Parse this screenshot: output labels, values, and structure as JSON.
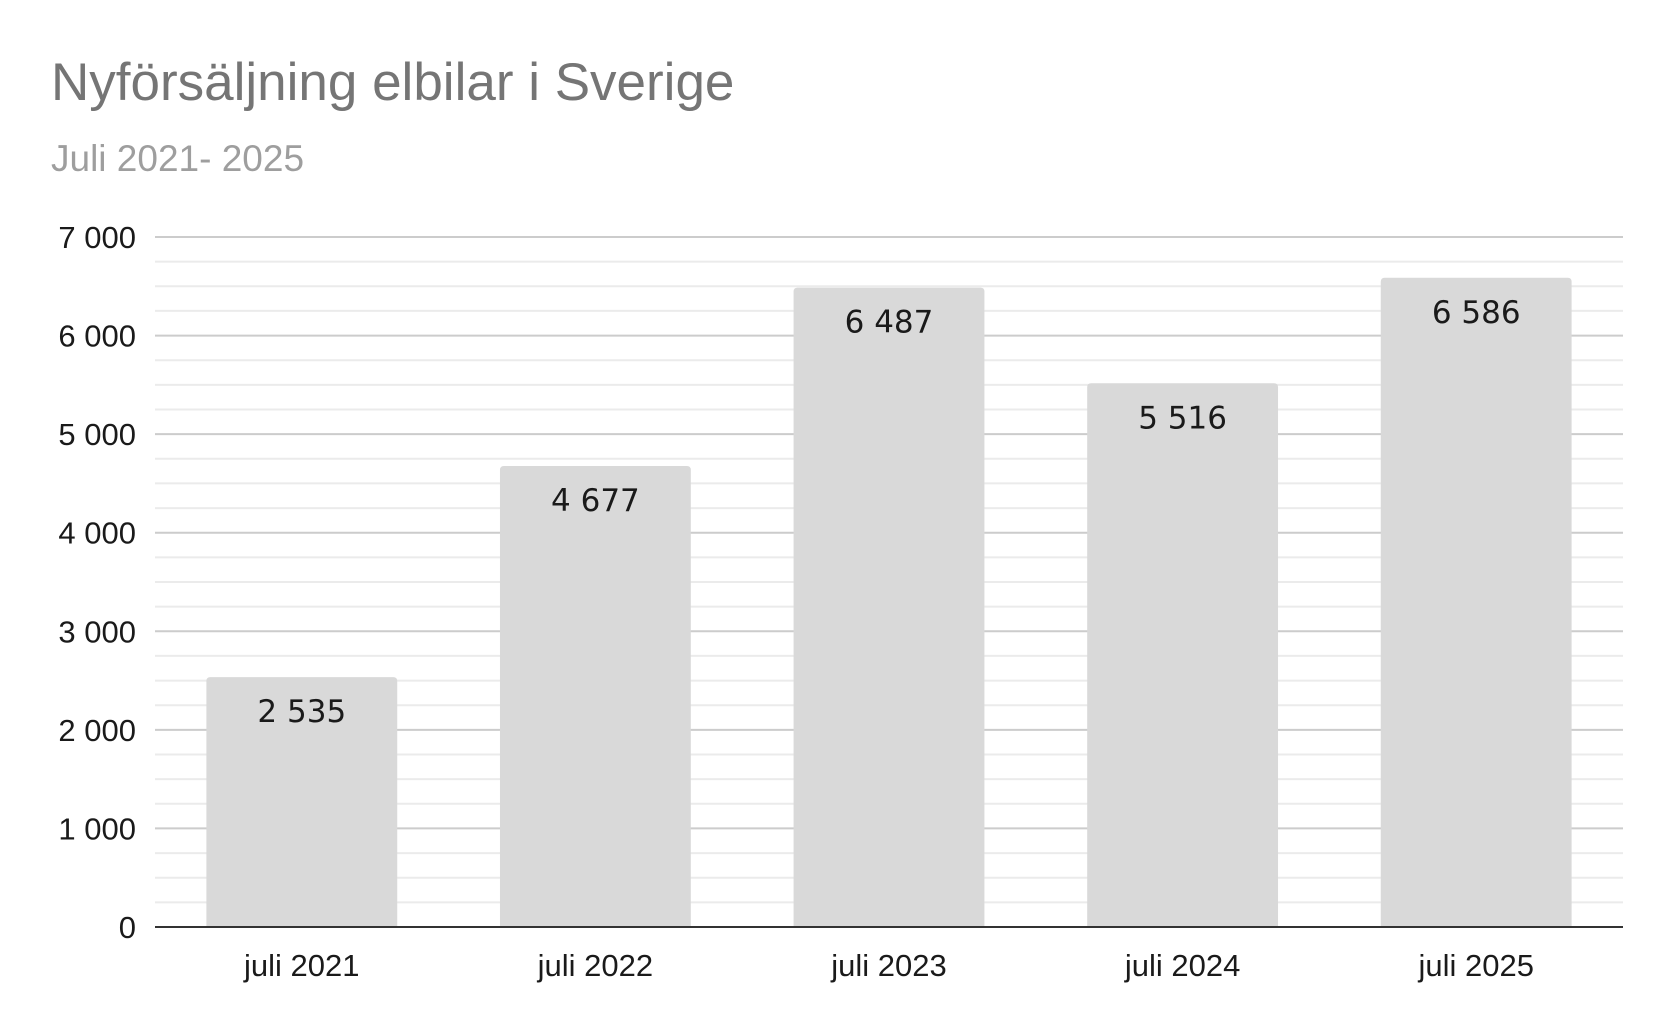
{
  "chart_data": {
    "type": "bar",
    "title": "Nyförsäljning elbilar i Sverige",
    "subtitle": "Juli 2021- 2025",
    "categories": [
      "juli 2021",
      "juli 2022",
      "juli 2023",
      "juli 2024",
      "juli 2025"
    ],
    "values": [
      2535,
      4677,
      6487,
      5516,
      6586
    ],
    "data_labels": [
      "2 535",
      "4 677",
      "6 487",
      "5 516",
      "6 586"
    ],
    "ylim": [
      0,
      7000
    ],
    "yticks": [
      0,
      1000,
      2000,
      3000,
      4000,
      5000,
      6000,
      7000
    ],
    "ytick_labels": [
      "0",
      "1 000",
      "2 000",
      "3 000",
      "4 000",
      "5 000",
      "6 000",
      "7 000"
    ],
    "grid": true,
    "minor_grid": true,
    "xlabel": "",
    "ylabel": "",
    "bar_color": "#d9d9d9"
  }
}
